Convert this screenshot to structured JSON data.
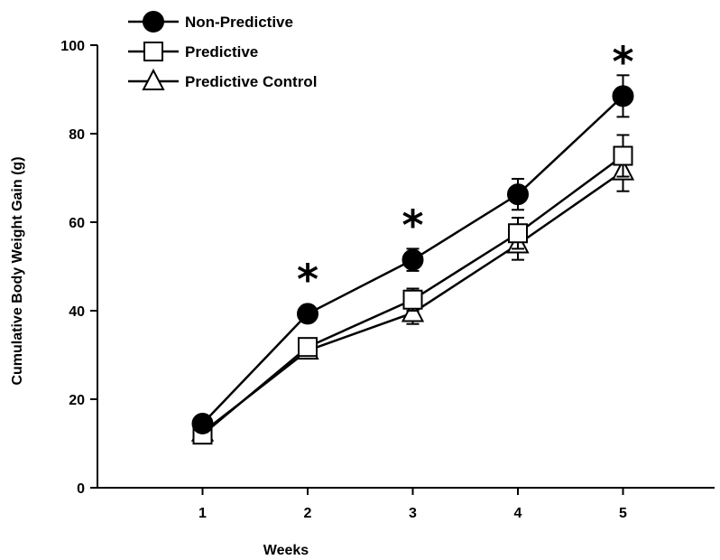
{
  "chart_data": {
    "type": "line",
    "title": "",
    "xlabel": "Weeks",
    "ylabel": "Cumulative Body Weight Gain (g)",
    "x": [
      1,
      2,
      3,
      4,
      5
    ],
    "x_tick_labels": [
      "1",
      "2",
      "3",
      "4",
      "5"
    ],
    "xlim": [
      0,
      6
    ],
    "ylim": [
      0,
      100
    ],
    "y_ticks": [
      0,
      20,
      40,
      60,
      80,
      100
    ],
    "y_tick_labels": [
      "0",
      "20",
      "40",
      "60",
      "80",
      "100"
    ],
    "grid": false,
    "legend_position": "top-left",
    "series": [
      {
        "name": "Non-Predictive",
        "marker": "filled-circle",
        "color": "#000000",
        "values": [
          14.5,
          39.3,
          51.5,
          66.3,
          88.5
        ],
        "errors": [
          1.0,
          1.5,
          2.5,
          3.5,
          4.7
        ]
      },
      {
        "name": "Predictive",
        "marker": "open-square",
        "color": "#000000",
        "values": [
          12.0,
          31.8,
          42.5,
          57.5,
          75.0
        ],
        "errors": [
          1.0,
          1.5,
          2.5,
          3.5,
          4.7
        ]
      },
      {
        "name": "Predictive Control",
        "marker": "open-triangle",
        "color": "#000000",
        "values": [
          12.5,
          31.0,
          39.5,
          55.0,
          71.5
        ],
        "errors": [
          1.0,
          1.5,
          2.5,
          3.5,
          4.5
        ]
      }
    ],
    "annotations": [
      {
        "x": 2,
        "text": "*",
        "above_value": 39.3
      },
      {
        "x": 3,
        "text": "*",
        "above_value": 51.5
      },
      {
        "x": 5,
        "text": "*",
        "above_value": 88.5
      }
    ]
  }
}
